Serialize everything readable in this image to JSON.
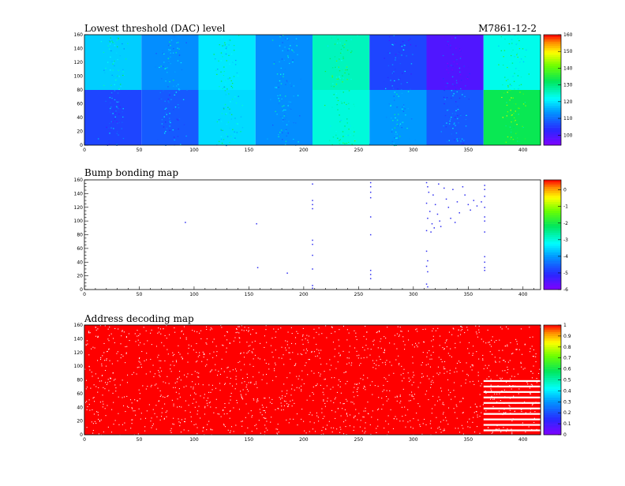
{
  "module_id": "M7861-12-2",
  "chart_data": [
    {
      "type": "heatmap",
      "title": "Lowest threshold (DAC) level",
      "xlim": [
        0,
        416
      ],
      "ylim": [
        0,
        160
      ],
      "x_ticks": [
        0,
        50,
        100,
        150,
        200,
        250,
        300,
        350,
        400
      ],
      "y_ticks": [
        0,
        20,
        40,
        60,
        80,
        100,
        120,
        140,
        160
      ],
      "z_range": [
        94,
        160
      ],
      "z_ticks": [
        100,
        110,
        120,
        130,
        140,
        150,
        160
      ],
      "roc_grid": {
        "columns": 8,
        "rows": 2,
        "col_width": 52,
        "row_height": 80
      },
      "roc_levels_top": [
        118,
        113,
        120,
        113,
        126,
        106,
        99,
        123
      ],
      "roc_levels_bottom": [
        106,
        108,
        119,
        113,
        124,
        114,
        108,
        133
      ],
      "grid": false,
      "legend": "right"
    },
    {
      "type": "scatter",
      "title": "Bump bonding map",
      "xlim": [
        0,
        416
      ],
      "ylim": [
        0,
        160
      ],
      "x_ticks": [
        0,
        50,
        100,
        150,
        200,
        250,
        300,
        350,
        400
      ],
      "y_ticks": [
        0,
        20,
        40,
        60,
        80,
        100,
        120,
        140,
        160
      ],
      "z_range": [
        -6,
        0.6
      ],
      "z_ticks": [
        0,
        -1,
        -2,
        -3,
        -4,
        -5,
        -6
      ],
      "points": [
        [
          92,
          98
        ],
        [
          157,
          96
        ],
        [
          158,
          32
        ],
        [
          185,
          24
        ],
        [
          208,
          154
        ],
        [
          208,
          130
        ],
        [
          208,
          124
        ],
        [
          208,
          118
        ],
        [
          208,
          72
        ],
        [
          208,
          66
        ],
        [
          208,
          50
        ],
        [
          208,
          30
        ],
        [
          208,
          6
        ],
        [
          208,
          2
        ],
        [
          261,
          156
        ],
        [
          261,
          150
        ],
        [
          261,
          142
        ],
        [
          261,
          134
        ],
        [
          261,
          106
        ],
        [
          261,
          80
        ],
        [
          261,
          28
        ],
        [
          261,
          22
        ],
        [
          261,
          16
        ],
        [
          312,
          156
        ],
        [
          313,
          150
        ],
        [
          314,
          142
        ],
        [
          312,
          126
        ],
        [
          315,
          114
        ],
        [
          313,
          104
        ],
        [
          312,
          86
        ],
        [
          312,
          56
        ],
        [
          313,
          42
        ],
        [
          312,
          34
        ],
        [
          313,
          26
        ],
        [
          312,
          8
        ],
        [
          313,
          4
        ],
        [
          318,
          138
        ],
        [
          320,
          124
        ],
        [
          322,
          110
        ],
        [
          317,
          96
        ],
        [
          319,
          90
        ],
        [
          316,
          84
        ],
        [
          323,
          154
        ],
        [
          324,
          100
        ],
        [
          325,
          92
        ],
        [
          328,
          148
        ],
        [
          330,
          132
        ],
        [
          332,
          120
        ],
        [
          334,
          104
        ],
        [
          336,
          146
        ],
        [
          340,
          128
        ],
        [
          342,
          112
        ],
        [
          338,
          98
        ],
        [
          345,
          150
        ],
        [
          347,
          138
        ],
        [
          350,
          124
        ],
        [
          352,
          116
        ],
        [
          355,
          130
        ],
        [
          358,
          122
        ],
        [
          362,
          128
        ],
        [
          365,
          152
        ],
        [
          365,
          146
        ],
        [
          365,
          136
        ],
        [
          365,
          120
        ],
        [
          365,
          106
        ],
        [
          365,
          100
        ],
        [
          365,
          84
        ],
        [
          365,
          48
        ],
        [
          365,
          40
        ],
        [
          365,
          32
        ],
        [
          365,
          28
        ]
      ],
      "marker_color": "#2e2ef0",
      "grid": false,
      "legend": "right"
    },
    {
      "type": "heatmap",
      "title": "Address decoding map",
      "xlim": [
        0,
        416
      ],
      "ylim": [
        0,
        160
      ],
      "x_ticks": [
        0,
        50,
        100,
        150,
        200,
        250,
        300,
        350,
        400
      ],
      "y_ticks": [
        0,
        20,
        40,
        60,
        80,
        100,
        120,
        140,
        160
      ],
      "z_range": [
        0,
        1
      ],
      "z_ticks": [
        1,
        0.9,
        0.8,
        0.7,
        0.6,
        0.5,
        0.4,
        0.3,
        0.2,
        0.1,
        0
      ],
      "fill_value": 1,
      "dropout_fraction": 0.07,
      "striped_region": {
        "x_from": 364,
        "x_to": 416,
        "y_from": 0,
        "y_to": 80,
        "row_period": 8
      },
      "grid": false,
      "legend": "right"
    }
  ]
}
